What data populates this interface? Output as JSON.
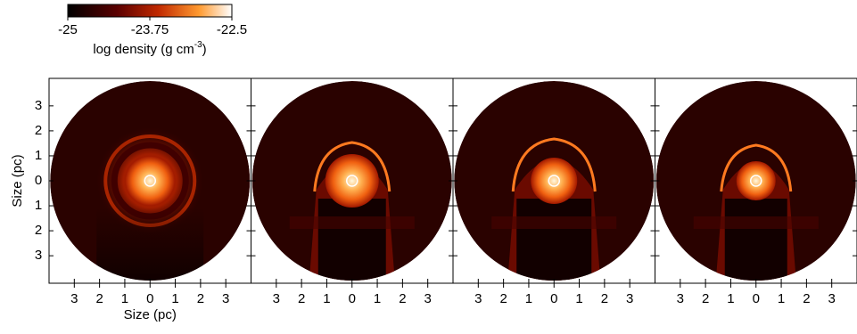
{
  "colorbar": {
    "lim": [
      -25,
      -22.5
    ],
    "ticks": [
      -25,
      -23.75,
      -22.5
    ],
    "label": "log density (g cm",
    "label_exponent": "-3",
    "label_suffix": ")"
  },
  "chart_data": [
    {
      "type": "image",
      "xlabel": "Size (pc)",
      "ylabel": "Size (pc)",
      "xlim": [
        -4,
        4
      ],
      "ylim": [
        -4.1,
        4.1
      ],
      "xticks": [
        {
          "value": -3,
          "label": "3"
        },
        {
          "value": -2,
          "label": "2"
        },
        {
          "value": -1,
          "label": "1"
        },
        0,
        1,
        2,
        3
      ],
      "yticks": [
        3,
        2,
        1,
        0,
        {
          "value": -1,
          "label": "1"
        },
        {
          "value": -2,
          "label": "2"
        },
        {
          "value": -3,
          "label": "3"
        }
      ]
    },
    {
      "type": "image",
      "xlim": [
        -4,
        4
      ],
      "ylim": [
        -4.1,
        4.1
      ],
      "xticks": [
        {
          "value": -3,
          "label": "3"
        },
        {
          "value": -2,
          "label": "2"
        },
        {
          "value": -1,
          "label": "1"
        },
        0,
        1,
        2,
        3
      ],
      "yticks": [
        3,
        2,
        1,
        0,
        -1,
        -2,
        -3
      ]
    },
    {
      "type": "image",
      "xlim": [
        -4,
        4
      ],
      "ylim": [
        -4.1,
        4.1
      ],
      "xticks": [
        {
          "value": -3,
          "label": "3"
        },
        {
          "value": -2,
          "label": "2"
        },
        {
          "value": -1,
          "label": "1"
        },
        0,
        1,
        2,
        3
      ],
      "yticks": [
        3,
        2,
        1,
        0,
        -1,
        -2,
        -3
      ]
    },
    {
      "type": "image",
      "xlim": [
        -4,
        4
      ],
      "ylim": [
        -4.1,
        4.1
      ],
      "xticks": [
        {
          "value": -3,
          "label": "3"
        },
        {
          "value": -2,
          "label": "2"
        },
        {
          "value": -1,
          "label": "1"
        },
        0,
        1,
        2,
        3
      ],
      "yticks": [
        3,
        2,
        1,
        0,
        -1,
        -2,
        -3
      ]
    }
  ]
}
